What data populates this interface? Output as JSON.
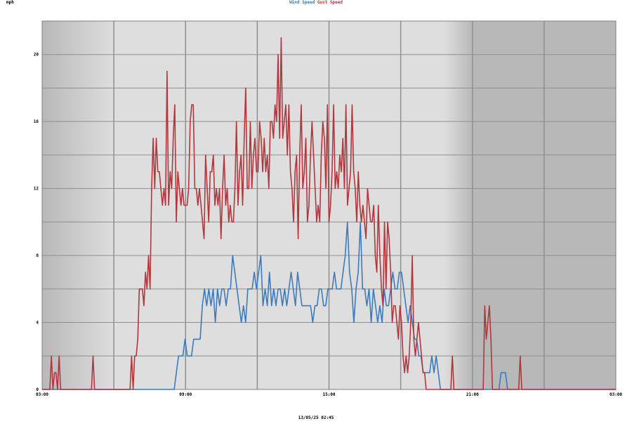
{
  "chart_data": {
    "type": "line",
    "y_unit": "mph",
    "ylim": [
      0,
      22
    ],
    "y_ticks": [
      "0",
      "4",
      "8",
      "12",
      "16",
      "20"
    ],
    "x_ticks": [
      "03:00",
      "09:00",
      "15:00",
      "21:00",
      "03:00"
    ],
    "x_range_hours": [
      0,
      24
    ],
    "caption": "13/05/25 02:45",
    "grid": true,
    "legend_position": "top-center",
    "series": [
      {
        "name": "Wind Speed",
        "color": "#3b7bbf",
        "values": [
          0,
          0,
          0,
          0,
          0,
          0,
          0,
          0,
          0,
          0,
          0,
          0,
          0,
          0,
          0,
          0,
          0,
          0,
          0,
          0,
          0,
          0,
          0,
          0,
          0,
          0,
          0,
          0,
          0,
          0,
          0,
          0,
          0,
          0,
          0,
          0,
          0,
          0,
          0,
          0,
          0,
          0,
          0,
          0,
          0,
          0,
          0,
          0,
          0,
          0,
          0,
          0,
          0,
          0,
          0,
          0,
          0,
          0,
          0,
          0,
          0,
          0,
          1,
          2,
          2,
          2,
          3,
          2,
          2,
          2,
          3,
          3,
          3,
          3,
          5,
          6,
          5,
          6,
          5,
          6,
          4,
          6,
          5,
          6,
          6,
          5,
          6,
          6,
          8,
          7,
          6,
          5,
          4,
          5,
          4,
          6,
          6,
          6,
          7,
          6,
          7,
          8,
          5,
          6,
          5,
          7,
          5,
          6,
          5,
          6,
          6,
          5,
          6,
          5,
          6,
          7,
          6,
          5,
          7,
          6,
          5,
          5,
          5,
          5,
          5,
          4,
          5,
          5,
          6,
          6,
          5,
          5,
          6,
          6,
          6,
          7,
          6,
          6,
          6,
          7,
          8,
          10,
          7,
          6,
          4,
          6,
          7,
          10,
          6,
          6,
          5,
          6,
          4,
          6,
          5,
          4,
          5,
          4,
          6,
          5,
          5,
          6,
          7,
          6,
          6,
          7,
          7,
          6,
          5,
          4,
          5,
          4,
          3,
          3,
          2,
          2,
          1,
          1,
          1,
          1,
          2,
          1,
          2,
          1,
          0,
          0,
          0,
          0,
          0,
          0,
          0,
          0,
          0,
          0,
          0,
          0,
          0,
          0,
          0,
          0,
          0,
          0,
          0,
          0,
          0,
          0,
          0,
          0,
          0,
          0,
          0,
          0,
          1,
          1,
          1,
          0,
          0,
          0,
          0,
          0,
          0,
          0,
          0,
          0,
          0,
          0,
          0,
          0,
          0,
          0,
          0,
          0,
          0,
          0,
          0,
          0,
          0,
          0,
          0,
          0,
          0,
          0,
          0,
          0,
          0,
          0,
          0,
          0,
          0,
          0,
          0,
          0,
          0,
          0,
          0,
          0,
          0,
          0,
          0,
          0,
          0,
          0,
          0,
          0,
          0,
          0
        ]
      },
      {
        "name": "Gust Speed",
        "color": "#b3373d",
        "values": [
          0,
          0,
          0,
          0,
          0,
          0,
          2,
          0,
          1,
          1,
          0,
          2,
          0,
          0,
          0,
          0,
          0,
          0,
          0,
          0,
          0,
          0,
          0,
          0,
          0,
          0,
          0,
          0,
          0,
          0,
          0,
          0,
          0,
          2,
          0,
          0,
          0,
          0,
          0,
          0,
          0,
          0,
          0,
          0,
          0,
          0,
          0,
          0,
          0,
          0,
          0,
          0,
          0,
          0,
          0,
          0,
          0,
          0,
          2,
          0,
          2,
          2,
          3,
          6,
          6,
          6,
          5,
          7,
          6,
          8,
          6,
          12,
          15,
          12,
          15,
          13,
          13,
          12,
          11,
          12,
          11,
          19,
          11,
          13,
          12,
          15,
          17,
          10,
          13,
          12,
          11,
          12,
          11,
          11,
          11,
          12,
          16,
          17,
          17,
          12,
          12,
          11,
          12,
          11,
          10,
          9,
          14,
          12,
          10,
          13,
          13,
          14,
          11,
          12,
          11,
          12,
          9,
          12,
          14,
          11,
          12,
          10,
          11,
          10,
          10,
          12,
          16,
          11,
          13,
          14,
          11,
          15,
          18,
          12,
          12,
          16,
          12,
          14,
          15,
          13,
          13,
          16,
          15,
          13,
          15,
          13,
          14,
          12,
          16,
          16,
          15,
          17,
          16,
          20,
          15,
          21,
          15,
          16,
          17,
          14,
          17,
          13,
          12,
          10,
          13,
          14,
          9,
          14,
          17,
          12,
          13,
          15,
          10,
          11,
          14,
          16,
          14,
          12,
          10,
          11,
          10,
          14,
          16,
          15,
          12,
          17,
          10,
          11,
          13,
          17,
          12,
          13,
          12,
          14,
          13,
          15,
          12,
          17,
          11,
          12,
          13,
          17,
          13,
          12,
          10,
          13,
          11,
          10,
          11,
          10,
          9,
          12,
          11,
          10,
          10,
          11,
          8,
          7,
          11,
          8,
          6,
          5,
          10,
          6,
          10,
          9,
          7,
          4,
          5,
          5,
          4,
          3,
          5,
          4,
          2,
          1,
          2,
          1,
          2,
          4,
          8,
          3,
          2,
          3,
          4,
          3,
          2,
          1,
          1,
          0,
          0,
          0,
          0,
          0,
          0,
          0,
          0,
          0,
          0,
          0,
          0,
          0,
          0,
          0,
          0,
          0,
          2,
          0,
          0,
          0,
          0,
          0,
          0,
          0,
          0,
          0,
          0,
          0,
          0,
          0,
          0,
          0,
          0,
          0,
          0,
          0,
          0,
          5,
          3,
          4,
          5,
          3,
          0,
          0,
          0,
          0,
          0,
          0,
          0,
          0,
          0,
          0,
          0,
          0,
          0,
          0,
          0,
          0,
          0,
          0,
          2,
          0,
          0,
          0,
          0,
          0,
          0,
          0,
          0,
          0,
          0,
          0,
          0,
          0,
          0,
          0,
          0,
          0,
          0,
          0,
          0,
          0,
          0,
          0,
          0,
          0,
          0,
          0,
          0,
          0,
          0,
          0,
          0,
          0,
          0,
          0,
          0,
          0,
          0,
          0,
          0,
          0,
          0,
          0,
          0,
          0,
          0,
          0,
          0,
          0,
          0,
          0,
          0,
          0,
          0,
          0,
          0,
          0,
          0,
          0,
          0,
          0,
          0
        ]
      }
    ]
  }
}
